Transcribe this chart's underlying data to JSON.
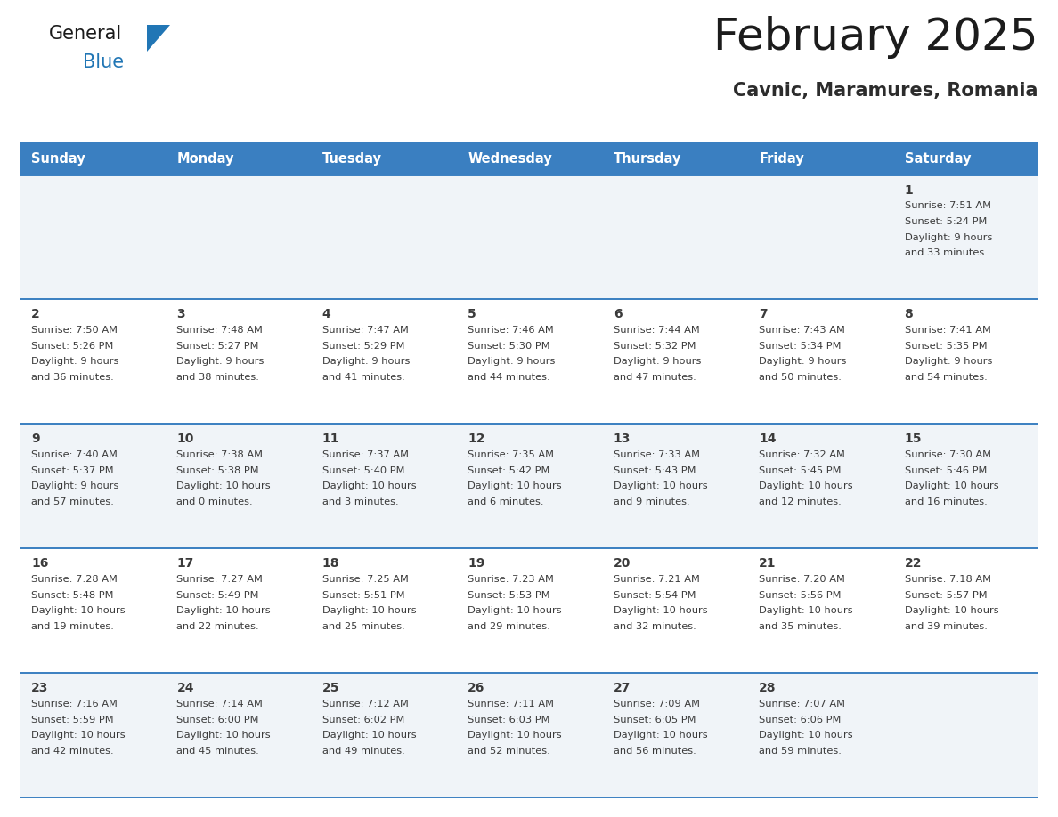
{
  "title": "February 2025",
  "subtitle": "Cavnic, Maramures, Romania",
  "days_of_week": [
    "Sunday",
    "Monday",
    "Tuesday",
    "Wednesday",
    "Thursday",
    "Friday",
    "Saturday"
  ],
  "header_bg": "#3a7fc1",
  "header_text": "#FFFFFF",
  "odd_row_bg": "#f0f4f8",
  "even_row_bg": "#FFFFFF",
  "border_color": "#3a7fc1",
  "day_number_color": "#3a3a3a",
  "text_color": "#3a3a3a",
  "calendar_data": [
    [
      null,
      null,
      null,
      null,
      null,
      null,
      {
        "day": "1",
        "sunrise": "7:51 AM",
        "sunset": "5:24 PM",
        "daylight_line1": "Daylight: 9 hours",
        "daylight_line2": "and 33 minutes."
      }
    ],
    [
      {
        "day": "2",
        "sunrise": "7:50 AM",
        "sunset": "5:26 PM",
        "daylight_line1": "Daylight: 9 hours",
        "daylight_line2": "and 36 minutes."
      },
      {
        "day": "3",
        "sunrise": "7:48 AM",
        "sunset": "5:27 PM",
        "daylight_line1": "Daylight: 9 hours",
        "daylight_line2": "and 38 minutes."
      },
      {
        "day": "4",
        "sunrise": "7:47 AM",
        "sunset": "5:29 PM",
        "daylight_line1": "Daylight: 9 hours",
        "daylight_line2": "and 41 minutes."
      },
      {
        "day": "5",
        "sunrise": "7:46 AM",
        "sunset": "5:30 PM",
        "daylight_line1": "Daylight: 9 hours",
        "daylight_line2": "and 44 minutes."
      },
      {
        "day": "6",
        "sunrise": "7:44 AM",
        "sunset": "5:32 PM",
        "daylight_line1": "Daylight: 9 hours",
        "daylight_line2": "and 47 minutes."
      },
      {
        "day": "7",
        "sunrise": "7:43 AM",
        "sunset": "5:34 PM",
        "daylight_line1": "Daylight: 9 hours",
        "daylight_line2": "and 50 minutes."
      },
      {
        "day": "8",
        "sunrise": "7:41 AM",
        "sunset": "5:35 PM",
        "daylight_line1": "Daylight: 9 hours",
        "daylight_line2": "and 54 minutes."
      }
    ],
    [
      {
        "day": "9",
        "sunrise": "7:40 AM",
        "sunset": "5:37 PM",
        "daylight_line1": "Daylight: 9 hours",
        "daylight_line2": "and 57 minutes."
      },
      {
        "day": "10",
        "sunrise": "7:38 AM",
        "sunset": "5:38 PM",
        "daylight_line1": "Daylight: 10 hours",
        "daylight_line2": "and 0 minutes."
      },
      {
        "day": "11",
        "sunrise": "7:37 AM",
        "sunset": "5:40 PM",
        "daylight_line1": "Daylight: 10 hours",
        "daylight_line2": "and 3 minutes."
      },
      {
        "day": "12",
        "sunrise": "7:35 AM",
        "sunset": "5:42 PM",
        "daylight_line1": "Daylight: 10 hours",
        "daylight_line2": "and 6 minutes."
      },
      {
        "day": "13",
        "sunrise": "7:33 AM",
        "sunset": "5:43 PM",
        "daylight_line1": "Daylight: 10 hours",
        "daylight_line2": "and 9 minutes."
      },
      {
        "day": "14",
        "sunrise": "7:32 AM",
        "sunset": "5:45 PM",
        "daylight_line1": "Daylight: 10 hours",
        "daylight_line2": "and 12 minutes."
      },
      {
        "day": "15",
        "sunrise": "7:30 AM",
        "sunset": "5:46 PM",
        "daylight_line1": "Daylight: 10 hours",
        "daylight_line2": "and 16 minutes."
      }
    ],
    [
      {
        "day": "16",
        "sunrise": "7:28 AM",
        "sunset": "5:48 PM",
        "daylight_line1": "Daylight: 10 hours",
        "daylight_line2": "and 19 minutes."
      },
      {
        "day": "17",
        "sunrise": "7:27 AM",
        "sunset": "5:49 PM",
        "daylight_line1": "Daylight: 10 hours",
        "daylight_line2": "and 22 minutes."
      },
      {
        "day": "18",
        "sunrise": "7:25 AM",
        "sunset": "5:51 PM",
        "daylight_line1": "Daylight: 10 hours",
        "daylight_line2": "and 25 minutes."
      },
      {
        "day": "19",
        "sunrise": "7:23 AM",
        "sunset": "5:53 PM",
        "daylight_line1": "Daylight: 10 hours",
        "daylight_line2": "and 29 minutes."
      },
      {
        "day": "20",
        "sunrise": "7:21 AM",
        "sunset": "5:54 PM",
        "daylight_line1": "Daylight: 10 hours",
        "daylight_line2": "and 32 minutes."
      },
      {
        "day": "21",
        "sunrise": "7:20 AM",
        "sunset": "5:56 PM",
        "daylight_line1": "Daylight: 10 hours",
        "daylight_line2": "and 35 minutes."
      },
      {
        "day": "22",
        "sunrise": "7:18 AM",
        "sunset": "5:57 PM",
        "daylight_line1": "Daylight: 10 hours",
        "daylight_line2": "and 39 minutes."
      }
    ],
    [
      {
        "day": "23",
        "sunrise": "7:16 AM",
        "sunset": "5:59 PM",
        "daylight_line1": "Daylight: 10 hours",
        "daylight_line2": "and 42 minutes."
      },
      {
        "day": "24",
        "sunrise": "7:14 AM",
        "sunset": "6:00 PM",
        "daylight_line1": "Daylight: 10 hours",
        "daylight_line2": "and 45 minutes."
      },
      {
        "day": "25",
        "sunrise": "7:12 AM",
        "sunset": "6:02 PM",
        "daylight_line1": "Daylight: 10 hours",
        "daylight_line2": "and 49 minutes."
      },
      {
        "day": "26",
        "sunrise": "7:11 AM",
        "sunset": "6:03 PM",
        "daylight_line1": "Daylight: 10 hours",
        "daylight_line2": "and 52 minutes."
      },
      {
        "day": "27",
        "sunrise": "7:09 AM",
        "sunset": "6:05 PM",
        "daylight_line1": "Daylight: 10 hours",
        "daylight_line2": "and 56 minutes."
      },
      {
        "day": "28",
        "sunrise": "7:07 AM",
        "sunset": "6:06 PM",
        "daylight_line1": "Daylight: 10 hours",
        "daylight_line2": "and 59 minutes."
      },
      null
    ]
  ],
  "logo_text_general": "General",
  "logo_text_blue": "Blue",
  "logo_triangle_color": "#2176b5"
}
